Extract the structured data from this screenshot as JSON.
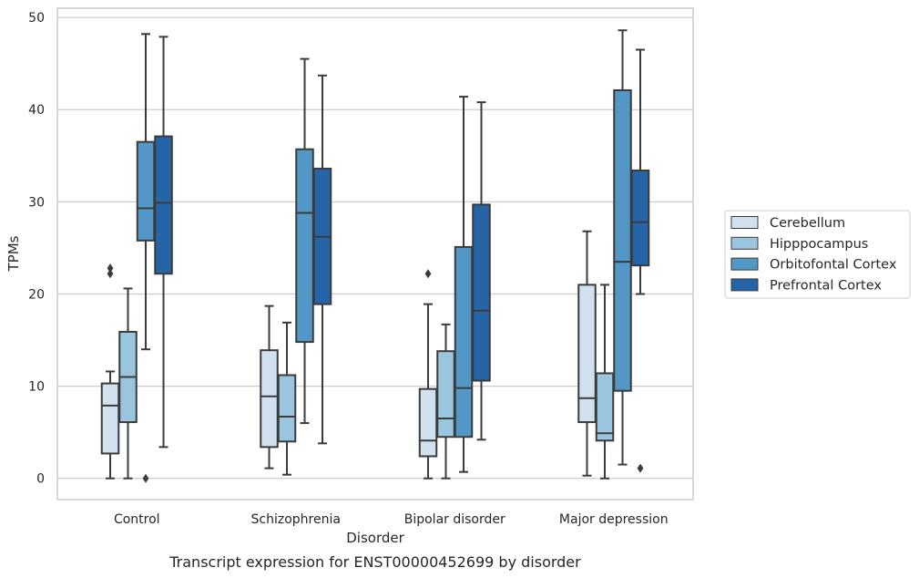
{
  "chart_data": {
    "type": "box",
    "caption": "Transcript expression for ENST00000452699 by disorder",
    "xlabel": "Disorder",
    "ylabel": "TPMs",
    "ylim": [
      -2.3,
      51
    ],
    "yticks": [
      0,
      10,
      20,
      30,
      40,
      50
    ],
    "grid": "horizontal",
    "legend_position": "right",
    "categories": [
      "Control",
      "Schizophrenia",
      "Bipolar disorder",
      "Major depression"
    ],
    "series": [
      {
        "name": "Cerebellum",
        "color": "#d1e1f0",
        "boxes": [
          {
            "whisker_low": 0,
            "q1": 2.7,
            "median": 7.9,
            "q3": 10.3,
            "whisker_high": 11.6,
            "outliers": [
              22.2,
              22.8
            ]
          },
          {
            "whisker_low": 1.1,
            "q1": 3.4,
            "median": 8.9,
            "q3": 13.9,
            "whisker_high": 18.7,
            "outliers": []
          },
          {
            "whisker_low": 0,
            "q1": 2.4,
            "median": 4.1,
            "q3": 9.7,
            "whisker_high": 18.9,
            "outliers": [
              22.2
            ]
          },
          {
            "whisker_low": 0.3,
            "q1": 6.1,
            "median": 8.7,
            "q3": 21.0,
            "whisker_high": 26.8,
            "outliers": []
          }
        ]
      },
      {
        "name": "Hipppocampus",
        "color": "#9ac5df",
        "boxes": [
          {
            "whisker_low": 0,
            "q1": 6.1,
            "median": 11.0,
            "q3": 15.9,
            "whisker_high": 20.6,
            "outliers": []
          },
          {
            "whisker_low": 0.4,
            "q1": 4.0,
            "median": 6.7,
            "q3": 11.2,
            "whisker_high": 16.9,
            "outliers": []
          },
          {
            "whisker_low": 0,
            "q1": 4.5,
            "median": 6.5,
            "q3": 13.8,
            "whisker_high": 16.7,
            "outliers": []
          },
          {
            "whisker_low": 0,
            "q1": 4.1,
            "median": 4.9,
            "q3": 11.4,
            "whisker_high": 21.0,
            "outliers": []
          }
        ]
      },
      {
        "name": "Orbitofontal Cortex",
        "color": "#5297c6",
        "boxes": [
          {
            "whisker_low": 14.0,
            "q1": 25.8,
            "median": 29.3,
            "q3": 36.5,
            "whisker_high": 48.2,
            "outliers": [
              0
            ]
          },
          {
            "whisker_low": 6.0,
            "q1": 14.8,
            "median": 28.8,
            "q3": 35.7,
            "whisker_high": 45.5,
            "outliers": []
          },
          {
            "whisker_low": 0.7,
            "q1": 4.5,
            "median": 9.8,
            "q3": 25.1,
            "whisker_high": 41.4,
            "outliers": []
          },
          {
            "whisker_low": 1.5,
            "q1": 9.5,
            "median": 23.5,
            "q3": 42.1,
            "whisker_high": 48.6,
            "outliers": []
          }
        ]
      },
      {
        "name": "Prefrontal Cortex",
        "color": "#2664a8",
        "boxes": [
          {
            "whisker_low": 3.4,
            "q1": 22.2,
            "median": 29.9,
            "q3": 37.1,
            "whisker_high": 47.9,
            "outliers": []
          },
          {
            "whisker_low": 3.8,
            "q1": 18.9,
            "median": 26.2,
            "q3": 33.6,
            "whisker_high": 43.7,
            "outliers": []
          },
          {
            "whisker_low": 4.2,
            "q1": 10.6,
            "median": 18.2,
            "q3": 29.7,
            "whisker_high": 40.8,
            "outliers": []
          },
          {
            "whisker_low": 20.0,
            "q1": 23.1,
            "median": 27.8,
            "q3": 33.4,
            "whisker_high": 46.5,
            "outliers": [
              1.1
            ]
          }
        ]
      }
    ]
  },
  "colors": {
    "edge": "#3b3b3b",
    "grid": "#cccccc",
    "frame": "#cccccc"
  }
}
